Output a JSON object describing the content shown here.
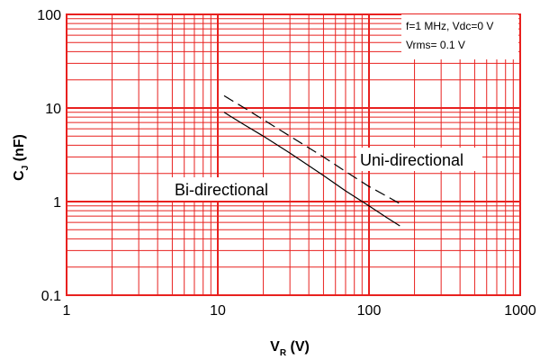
{
  "chart_data": {
    "type": "line",
    "x_scale": "log",
    "y_scale": "log",
    "xlim": [
      1,
      1000
    ],
    "ylim": [
      0.1,
      100
    ],
    "x_ticks": [
      "1",
      "10",
      "100",
      "1000"
    ],
    "y_ticks": [
      "0.1",
      "1",
      "10",
      "100"
    ],
    "xlabel_main": "V",
    "xlabel_sub": "R",
    "xlabel_unit": " (V)",
    "ylabel_main": "C",
    "ylabel_sub": "J",
    "ylabel_unit": " (nF)",
    "grid": true,
    "grid_color": "#e8211f",
    "conditions": {
      "line1": "f=1 MHz, Vdc=0 V",
      "line2": "Vrms= 0.1 V"
    },
    "series": [
      {
        "name": "Bi-directional",
        "style": "solid",
        "x": [
          11,
          15,
          20,
          30,
          50,
          70,
          100,
          130,
          160
        ],
        "y": [
          9.0,
          6.6,
          5.0,
          3.3,
          1.9,
          1.3,
          0.9,
          0.68,
          0.55
        ]
      },
      {
        "name": "Uni-directional",
        "style": "dashed",
        "x": [
          11,
          15,
          20,
          30,
          50,
          70,
          100,
          130,
          160
        ],
        "y": [
          13.5,
          10.0,
          7.5,
          5.0,
          3.0,
          2.1,
          1.45,
          1.15,
          0.95
        ]
      }
    ]
  }
}
